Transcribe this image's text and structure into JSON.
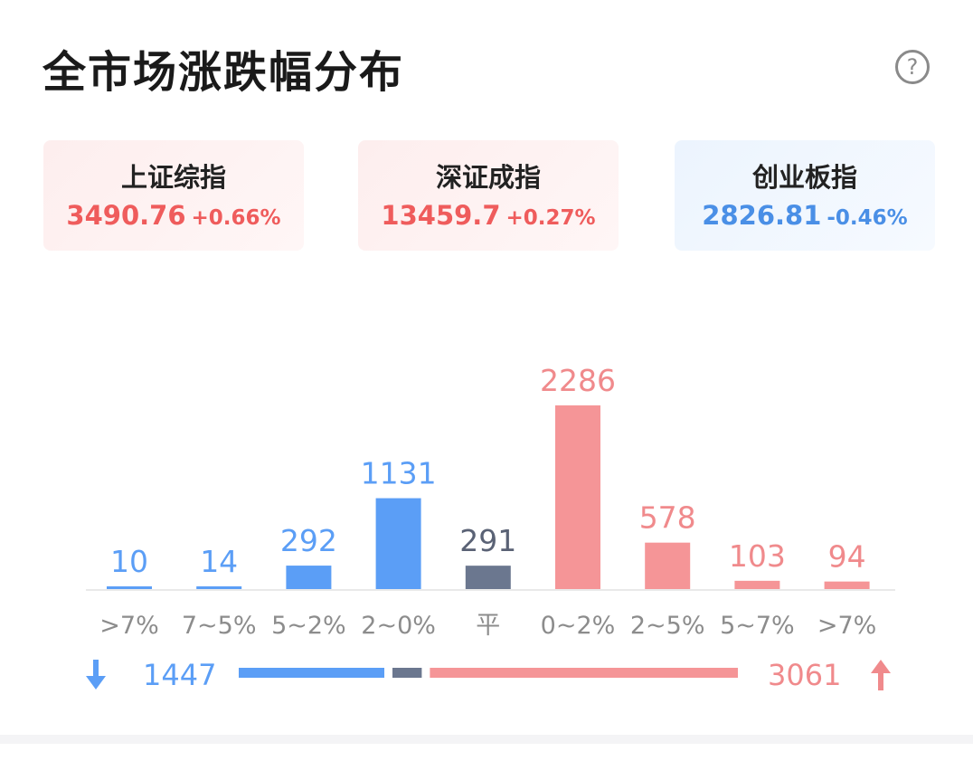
{
  "title": "全市场涨跌幅分布",
  "help_icon": "help-circle-icon",
  "indices": [
    {
      "name": "上证综指",
      "value": "3490.76",
      "change": "+0.66%",
      "trend": "up"
    },
    {
      "name": "深证成指",
      "value": "13459.7",
      "change": "+0.27%",
      "trend": "up"
    },
    {
      "name": "创业板指",
      "value": "2826.81",
      "change": "-0.46%",
      "trend": "down"
    }
  ],
  "chart_data": {
    "type": "bar",
    "categories": [
      ">7%",
      "7~5%",
      "5~2%",
      "2~0%",
      "平",
      "0~2%",
      "2~5%",
      "5~7%",
      ">7%"
    ],
    "values": [
      10,
      14,
      292,
      1131,
      291,
      2286,
      578,
      103,
      94
    ],
    "groups": [
      "down",
      "down",
      "down",
      "down",
      "flat",
      "up",
      "up",
      "up",
      "up"
    ],
    "colors": {
      "down": "#5b9ef6",
      "flat": "#6b778f",
      "up": "#f59597"
    },
    "label_colors": {
      "down": "#5b9ef6",
      "flat": "#5a6275",
      "up": "#f08a8c"
    },
    "tick_color": "#8c8c8c"
  },
  "summary": {
    "down_count": "1447",
    "up_count": "3061",
    "down_icon": "arrow-down-icon",
    "up_icon": "arrow-up-icon",
    "flat_count": 291
  }
}
